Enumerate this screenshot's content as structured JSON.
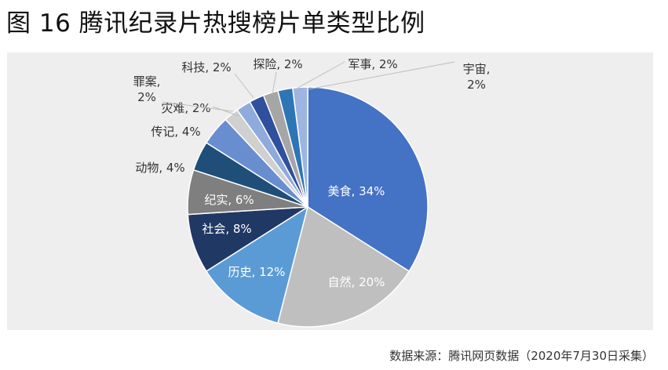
{
  "title": "图 16 腾讯纪录片热搜榜片单类型比例",
  "source": "数据来源：腾讯网页数据（2020年7月30日采集）",
  "chart_data": {
    "type": "pie",
    "start": "12 o'clock",
    "direction": "clockwise",
    "slices": [
      {
        "label": "美食",
        "value": 34,
        "display": "美食, 34%",
        "color": "#4472C4"
      },
      {
        "label": "自然",
        "value": 20,
        "display": "自然, 20%",
        "color": "#BFBFBF"
      },
      {
        "label": "历史",
        "value": 12,
        "display": "历史, 12%",
        "color": "#5B9BD5"
      },
      {
        "label": "社会",
        "value": 8,
        "display": "社会, 8%",
        "color": "#203864"
      },
      {
        "label": "纪实",
        "value": 6,
        "display": "纪实, 6%",
        "color": "#7F7F7F"
      },
      {
        "label": "动物",
        "value": 4,
        "display": "动物, 4%",
        "color": "#1F4E79"
      },
      {
        "label": "传记",
        "value": 4,
        "display": "传记, 4%",
        "color": "#698ED0"
      },
      {
        "label": "灾难",
        "value": 2,
        "display": "灾难, 2%",
        "color": "#D0D0D0"
      },
      {
        "label": "罪案",
        "value": 2,
        "display": "罪案, 2%",
        "color": "#8FAADC"
      },
      {
        "label": "科技",
        "value": 2,
        "display": "科技, 2%",
        "color": "#2F4F9F"
      },
      {
        "label": "探险",
        "value": 2,
        "display": "探险, 2%",
        "color": "#A6A6A6"
      },
      {
        "label": "军事",
        "value": 2,
        "display": "军事, 2%",
        "color": "#2E75B6"
      },
      {
        "label": "宇宙",
        "value": 2,
        "display": "宇宙, 2%",
        "color": "#9DB5E0"
      }
    ]
  }
}
